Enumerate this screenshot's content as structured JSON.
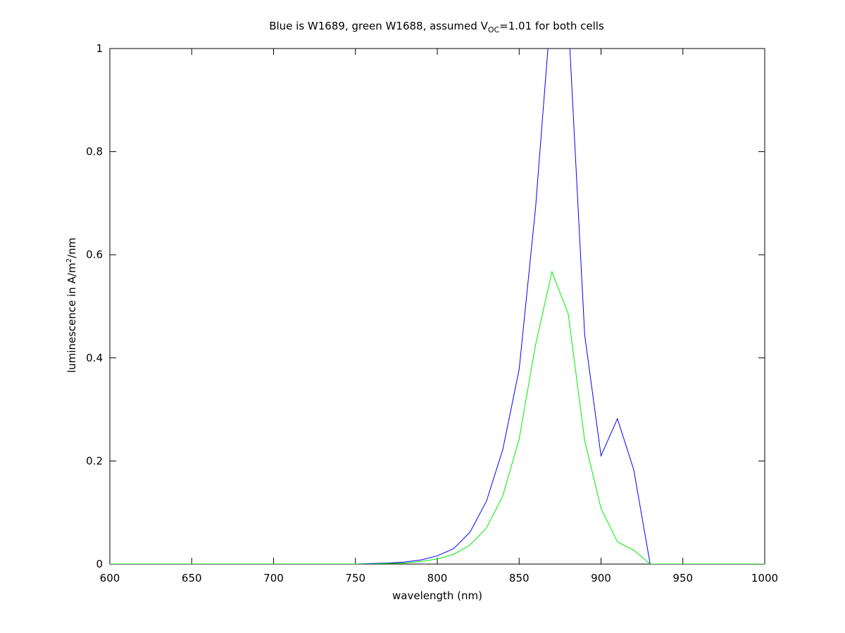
{
  "chart_data": {
    "type": "line",
    "title": {
      "prefix": "Blue is W1689, green W1688, assumed V",
      "subscript": "OC",
      "suffix": "=1.01 for both cells"
    },
    "xlabel": "wavelength (nm)",
    "ylabel": {
      "prefix": "luminescence in A/m",
      "superscript": "2",
      "suffix": "/nm"
    },
    "xlim": [
      600,
      1000
    ],
    "ylim": [
      0,
      1
    ],
    "x_ticks": [
      600,
      650,
      700,
      750,
      800,
      850,
      900,
      950,
      1000
    ],
    "x_tick_labels": [
      "600",
      "650",
      "700",
      "750",
      "800",
      "850",
      "900",
      "950",
      "1000"
    ],
    "y_ticks": [
      0,
      0.2,
      0.4,
      0.6,
      0.8,
      1
    ],
    "y_tick_labels": [
      "0",
      "0.2",
      "0.4",
      "0.6",
      "0.8",
      "1"
    ],
    "grid": false,
    "legend": "none",
    "x": [
      600,
      610,
      620,
      630,
      640,
      650,
      660,
      670,
      680,
      690,
      700,
      710,
      720,
      730,
      740,
      750,
      760,
      770,
      780,
      790,
      800,
      810,
      820,
      830,
      840,
      850,
      860,
      870,
      880,
      890,
      900,
      910,
      920,
      930,
      940,
      950,
      960,
      970,
      980,
      990,
      1000
    ],
    "series": [
      {
        "color": "#0000ff",
        "values": [
          0,
          0,
          0,
          0,
          0,
          0,
          0,
          0,
          0,
          0,
          0,
          0,
          0,
          0,
          0,
          0,
          0.001,
          0.002,
          0.004,
          0.008,
          0.016,
          0.03,
          0.062,
          0.122,
          0.222,
          0.378,
          0.69,
          1.1,
          1.06,
          0.445,
          0.21,
          0.282,
          0.183,
          0,
          0,
          0,
          0,
          0,
          0,
          0,
          0
        ]
      },
      {
        "color": "#00ee00",
        "values": [
          0,
          0,
          0,
          0,
          0,
          0,
          0,
          0,
          0,
          0,
          0,
          0,
          0,
          0,
          0,
          0,
          0,
          0.001,
          0.002,
          0.005,
          0.01,
          0.019,
          0.037,
          0.07,
          0.132,
          0.243,
          0.425,
          0.567,
          0.485,
          0.24,
          0.108,
          0.043,
          0.027,
          0,
          0,
          0,
          0,
          0,
          0,
          0,
          0
        ]
      }
    ]
  }
}
